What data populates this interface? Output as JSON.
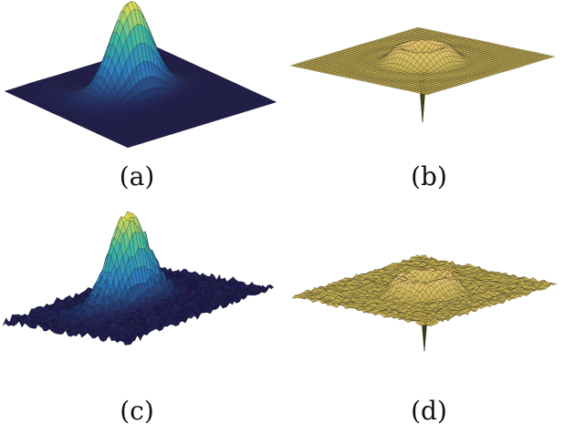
{
  "figure": {
    "panels": [
      {
        "id": "a",
        "caption": "(a)",
        "surface": "smooth-gaussian-peak",
        "colormap": "parula",
        "noise": false
      },
      {
        "id": "b",
        "caption": "(b)",
        "surface": "smooth-ring-with-central-dip",
        "colormap": "yellow-olive",
        "noise": false
      },
      {
        "id": "c",
        "caption": "(c)",
        "surface": "noisy-gaussian-peak",
        "colormap": "parula",
        "noise": true
      },
      {
        "id": "d",
        "caption": "(d)",
        "surface": "noisy-ring-with-central-dip",
        "colormap": "yellow-olive",
        "noise": true
      }
    ],
    "colors": {
      "parula_low": "#1f1b4d",
      "parula_mid": "#2f7fbf",
      "parula_mid2": "#3fb8a0",
      "parula_high": "#f2e14a",
      "olive_low": "#3a3a10",
      "olive_mid": "#b0a040",
      "olive_high": "#f3cf7a",
      "mesh": "#111111"
    }
  }
}
